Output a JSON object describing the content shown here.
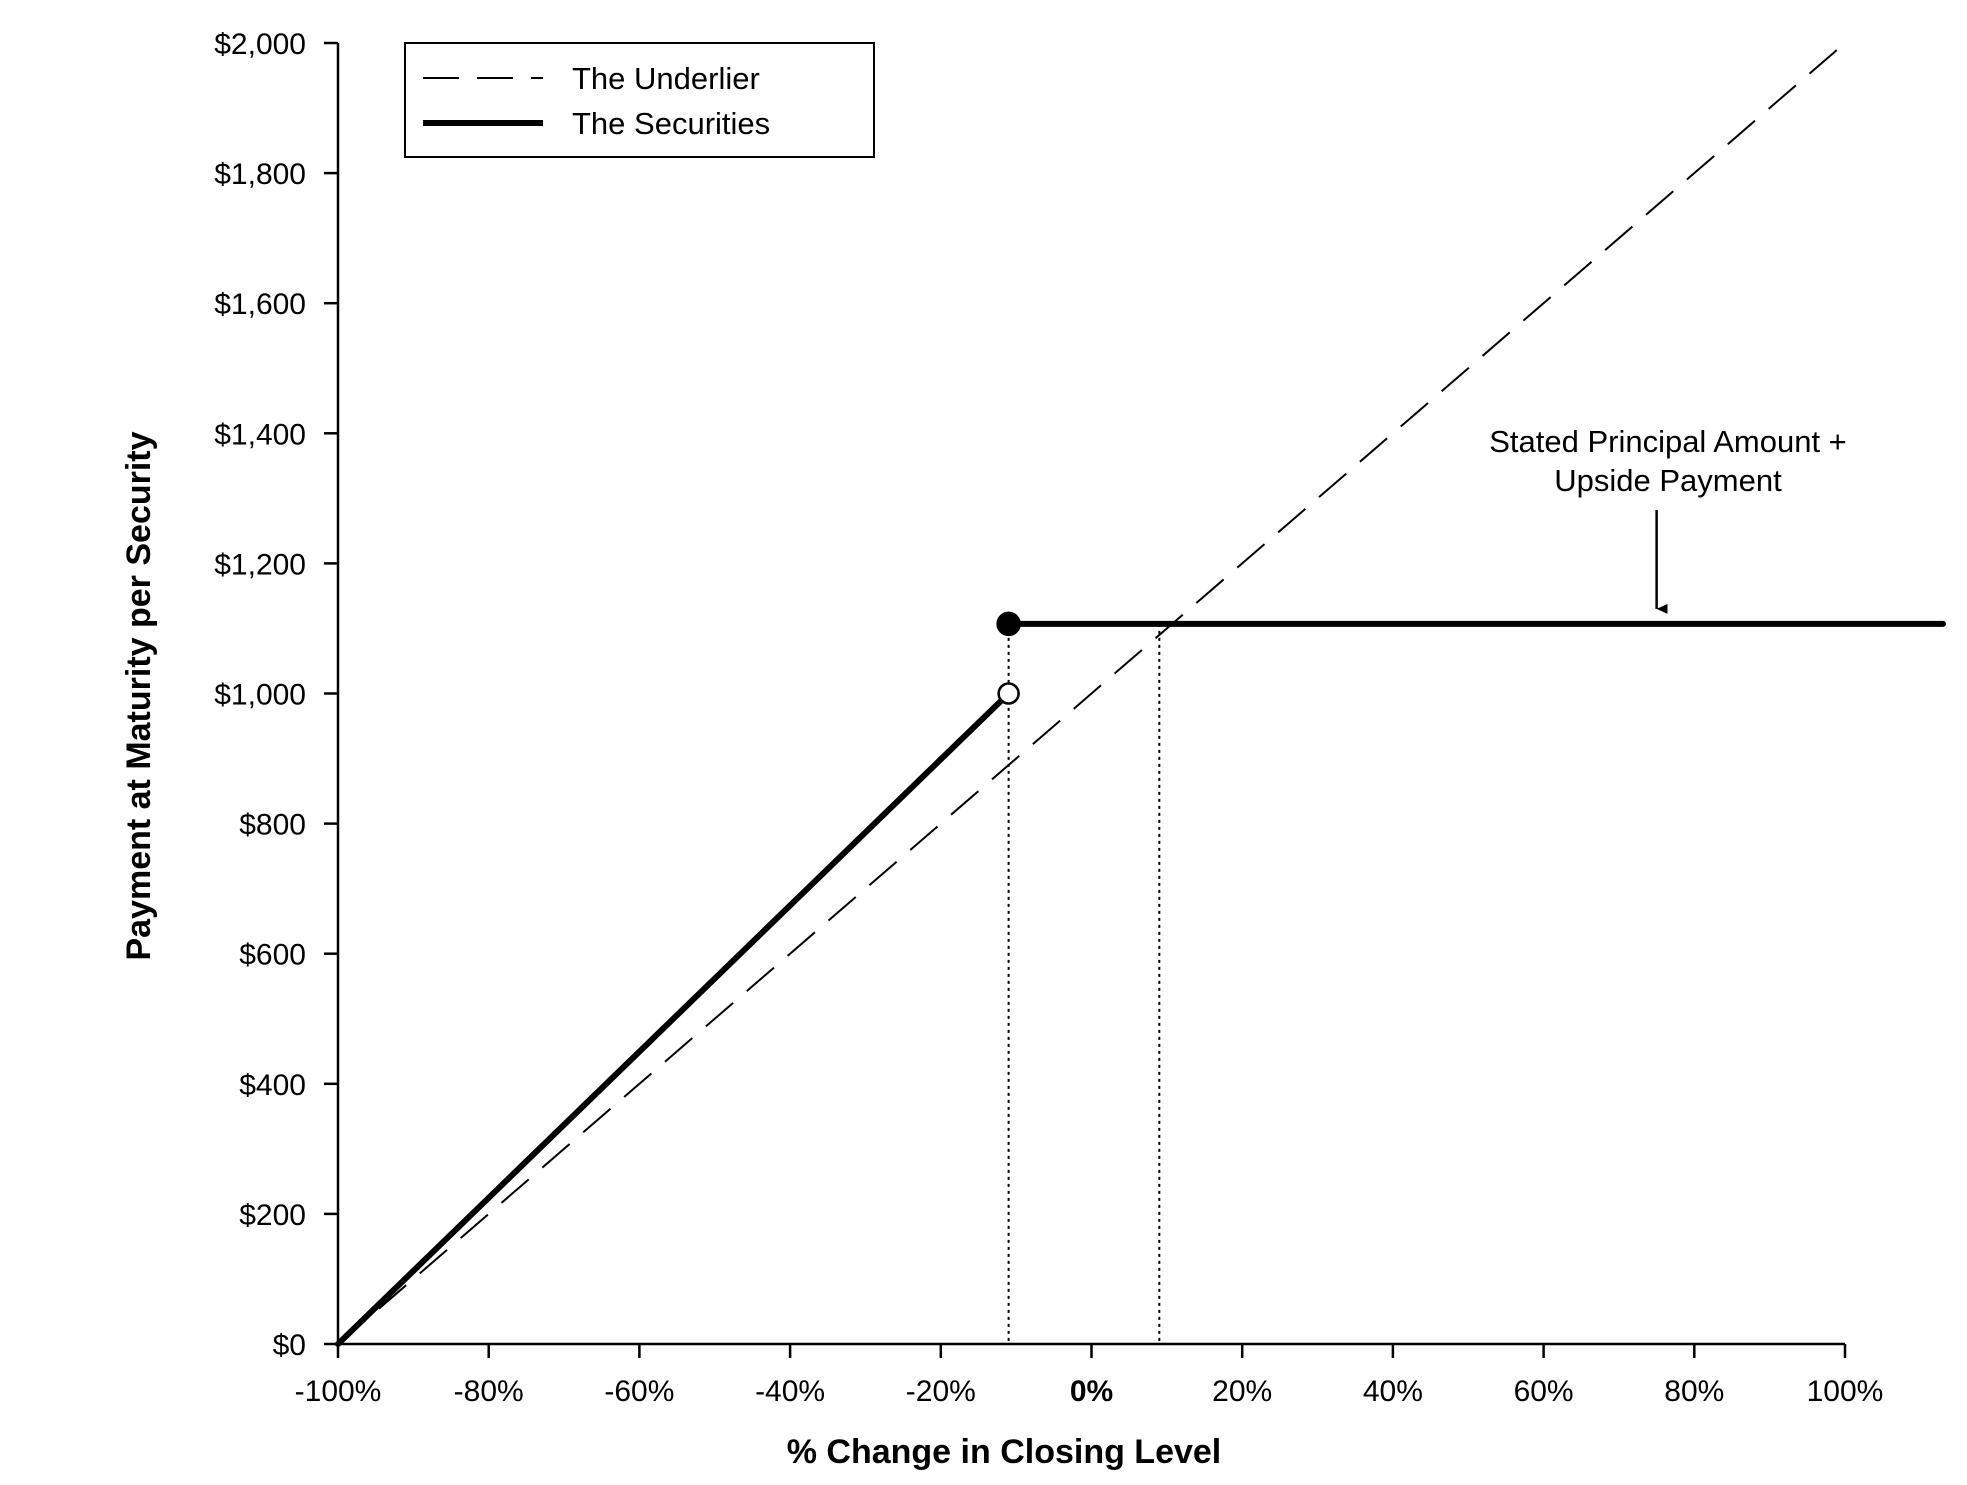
{
  "chart_data": {
    "type": "line",
    "title": "",
    "xlabel": "% Change in Closing Level",
    "ylabel": "Payment at Maturity per Security",
    "xlim": [
      -100,
      100
    ],
    "ylim": [
      0,
      2000
    ],
    "x_ticks": [
      -100,
      -80,
      -60,
      -40,
      -20,
      0,
      20,
      40,
      60,
      80,
      100
    ],
    "x_tick_labels": [
      "-100%",
      "-80%",
      "-60%",
      "-40%",
      "-20%",
      "0%",
      "20%",
      "40%",
      "60%",
      "80%",
      "100%"
    ],
    "y_ticks": [
      0,
      200,
      400,
      600,
      800,
      1000,
      1200,
      1400,
      1600,
      1800,
      2000
    ],
    "y_tick_labels": [
      "$0",
      "$200",
      "$400",
      "$600",
      "$800",
      "$1,000",
      "$1,200",
      "$1,400",
      "$1,600",
      "$1,800",
      "$2,000"
    ],
    "grid": false,
    "legend_position": "top-left",
    "series": [
      {
        "name": "The Underlier",
        "style": "dashed",
        "points": [
          [
            -100,
            0
          ],
          [
            100,
            2000
          ]
        ]
      },
      {
        "name": "The Securities",
        "style": "solid-thick",
        "segments": [
          [
            [
              -100,
              0
            ],
            [
              -11,
              1000
            ]
          ],
          [
            [
              -11,
              1107
            ],
            [
              113,
              1107
            ]
          ]
        ]
      }
    ],
    "markers": [
      {
        "x": -11,
        "y": 1000,
        "fill": "open"
      },
      {
        "x": -11,
        "y": 1107,
        "fill": "filled"
      }
    ],
    "reference_lines": [
      {
        "x": -11,
        "y_from": 0,
        "y_to": 1107,
        "style": "dotted"
      },
      {
        "x": 9,
        "y_from": 0,
        "y_to": 1107,
        "style": "dotted"
      }
    ],
    "annotations": [
      {
        "lines": [
          "Stated Principal Amount +",
          "Upside Payment"
        ],
        "x": 75,
        "arrow_target_y": 1107
      }
    ],
    "colors": {
      "line": "#000000",
      "background": "#ffffff"
    }
  }
}
